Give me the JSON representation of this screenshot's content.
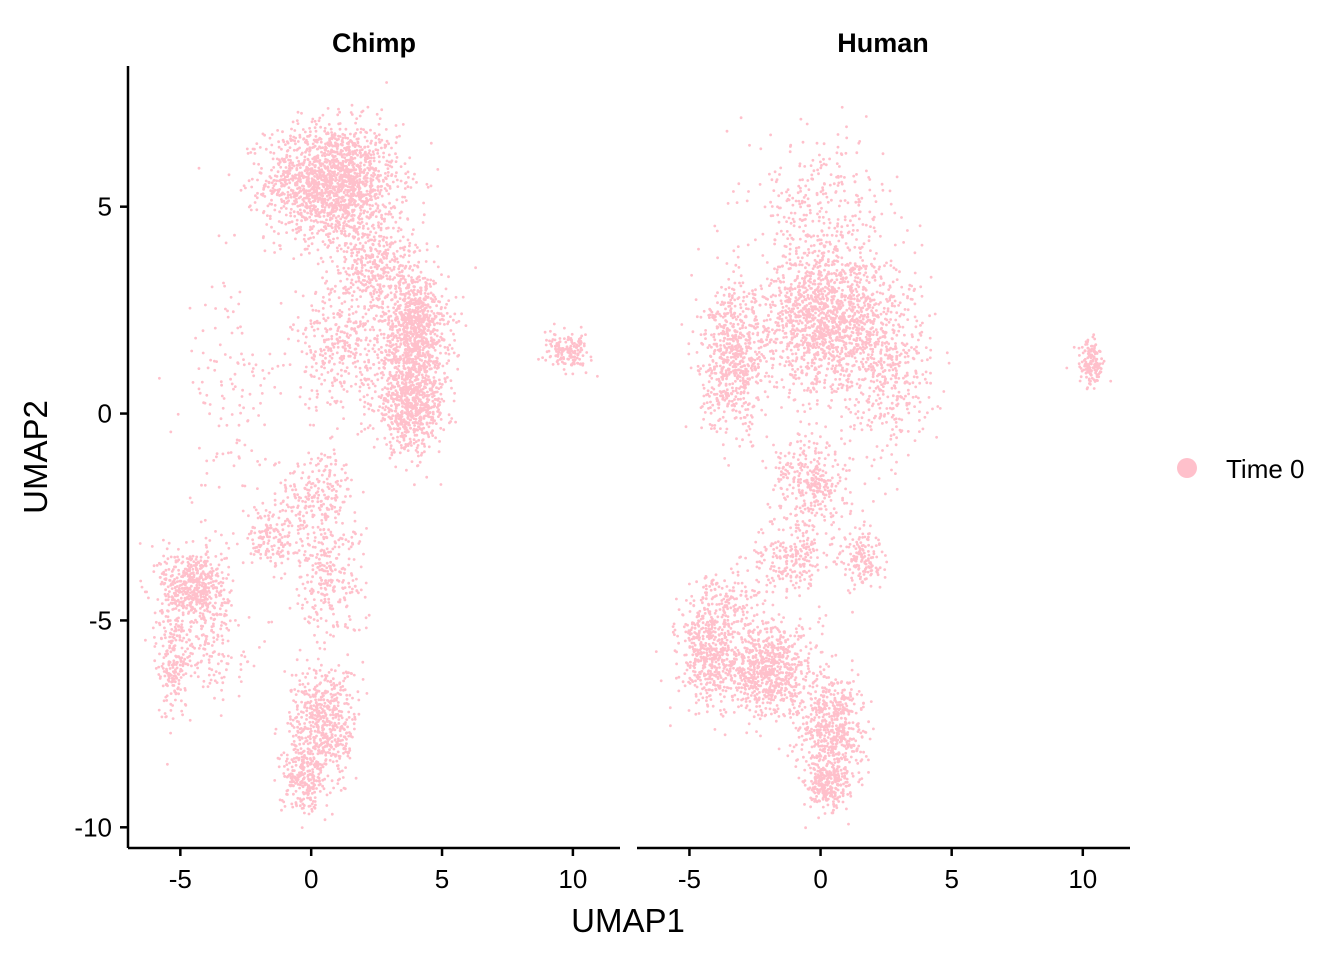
{
  "chart_data": {
    "type": "scatter",
    "xlabel": "UMAP1",
    "ylabel": "UMAP2",
    "xlim": [
      -7,
      11.8
    ],
    "ylim": [
      -10.5,
      8.4
    ],
    "x_ticks": [
      "-5",
      "0",
      "5",
      "10"
    ],
    "y_ticks": [
      "-10",
      "-5",
      "0",
      "5"
    ],
    "x_tick_values": [
      -5,
      0,
      5,
      10
    ],
    "y_tick_values": [
      -10,
      -5,
      0,
      5
    ],
    "grid": false,
    "legend": {
      "position": "right",
      "entries": [
        {
          "label": "Time 0",
          "color": "#FFC0CB"
        }
      ]
    },
    "point_color": "#FFC0CB",
    "facets": [
      {
        "title": "Chimp",
        "regions": [
          {
            "cx": 0.8,
            "cy": 5.6,
            "sx": 1.8,
            "sy": 1.0,
            "n": 1700
          },
          {
            "cx": 4.0,
            "cy": 2.0,
            "sx": 0.9,
            "sy": 1.0,
            "n": 800
          },
          {
            "cx": 3.8,
            "cy": 0.2,
            "sx": 1.0,
            "sy": 0.8,
            "n": 700
          },
          {
            "cx": 2.5,
            "cy": 3.5,
            "sx": 1.2,
            "sy": 1.0,
            "n": 450
          },
          {
            "cx": 1.2,
            "cy": 1.5,
            "sx": 1.4,
            "sy": 1.0,
            "n": 350
          },
          {
            "cx": -3.0,
            "cy": 0.5,
            "sx": 1.3,
            "sy": 2.0,
            "n": 120
          },
          {
            "cx": 0.2,
            "cy": -2.0,
            "sx": 1.1,
            "sy": 0.8,
            "n": 250
          },
          {
            "cx": -1.5,
            "cy": -3.0,
            "sx": 0.8,
            "sy": 0.5,
            "n": 150
          },
          {
            "cx": -4.5,
            "cy": -4.2,
            "sx": 0.9,
            "sy": 0.7,
            "n": 500
          },
          {
            "cx": -5.3,
            "cy": -6.0,
            "sx": 0.4,
            "sy": 1.0,
            "n": 180
          },
          {
            "cx": -4.0,
            "cy": -5.5,
            "sx": 1.2,
            "sy": 0.9,
            "n": 180
          },
          {
            "cx": 0.6,
            "cy": -4.0,
            "sx": 1.0,
            "sy": 1.0,
            "n": 250
          },
          {
            "cx": 0.5,
            "cy": -7.5,
            "sx": 0.9,
            "sy": 1.0,
            "n": 550
          },
          {
            "cx": -0.3,
            "cy": -8.8,
            "sx": 0.6,
            "sy": 0.6,
            "n": 250
          },
          {
            "cx": 9.8,
            "cy": 1.5,
            "sx": 0.6,
            "sy": 0.3,
            "n": 160
          }
        ]
      },
      {
        "title": "Human",
        "regions": [
          {
            "cx": 0.3,
            "cy": 2.3,
            "sx": 1.8,
            "sy": 1.3,
            "n": 1500
          },
          {
            "cx": -3.3,
            "cy": 1.3,
            "sx": 0.9,
            "sy": 1.2,
            "n": 650
          },
          {
            "cx": 2.7,
            "cy": 1.0,
            "sx": 1.1,
            "sy": 1.5,
            "n": 350
          },
          {
            "cx": 0.0,
            "cy": 5.0,
            "sx": 1.8,
            "sy": 1.3,
            "n": 280
          },
          {
            "cx": -0.3,
            "cy": -1.7,
            "sx": 1.1,
            "sy": 0.9,
            "n": 350
          },
          {
            "cx": 1.6,
            "cy": -3.5,
            "sx": 0.5,
            "sy": 0.5,
            "n": 150
          },
          {
            "cx": -1.0,
            "cy": -3.5,
            "sx": 1.0,
            "sy": 0.6,
            "n": 200
          },
          {
            "cx": -2.0,
            "cy": -6.2,
            "sx": 1.3,
            "sy": 0.8,
            "n": 750
          },
          {
            "cx": -4.3,
            "cy": -5.8,
            "sx": 0.8,
            "sy": 0.9,
            "n": 450
          },
          {
            "cx": -3.5,
            "cy": -4.5,
            "sx": 1.0,
            "sy": 0.6,
            "n": 150
          },
          {
            "cx": 0.5,
            "cy": -7.6,
            "sx": 0.9,
            "sy": 0.9,
            "n": 550
          },
          {
            "cx": 0.2,
            "cy": -9.0,
            "sx": 0.6,
            "sy": 0.5,
            "n": 250
          },
          {
            "cx": 10.3,
            "cy": 1.2,
            "sx": 0.35,
            "sy": 0.4,
            "n": 150
          }
        ]
      }
    ]
  }
}
